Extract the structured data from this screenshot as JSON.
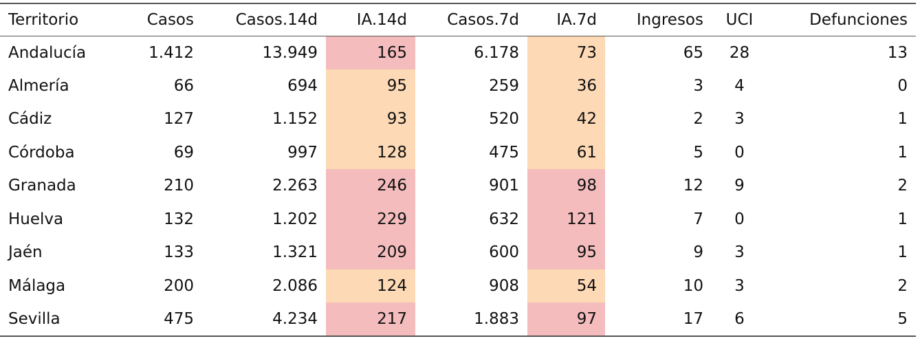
{
  "colors": {
    "high": "#f4bcbd",
    "medium": "#fdd9b5"
  },
  "table": {
    "headers": [
      "Territorio",
      "Casos",
      "Casos.14d",
      "IA.14d",
      "Casos.7d",
      "IA.7d",
      "Ingresos",
      "UCI",
      "Defunciones"
    ],
    "rows": [
      {
        "cells": [
          "Andalucía",
          "1.412",
          "13.949",
          "165",
          "6.178",
          "73",
          "65",
          "28",
          "13"
        ],
        "ia14_level": "high",
        "ia7_level": "medium"
      },
      {
        "cells": [
          "Almería",
          "66",
          "694",
          "95",
          "259",
          "36",
          "3",
          "4",
          "0"
        ],
        "ia14_level": "medium",
        "ia7_level": "medium"
      },
      {
        "cells": [
          "Cádiz",
          "127",
          "1.152",
          "93",
          "520",
          "42",
          "2",
          "3",
          "1"
        ],
        "ia14_level": "medium",
        "ia7_level": "medium"
      },
      {
        "cells": [
          "Córdoba",
          "69",
          "997",
          "128",
          "475",
          "61",
          "5",
          "0",
          "1"
        ],
        "ia14_level": "medium",
        "ia7_level": "medium"
      },
      {
        "cells": [
          "Granada",
          "210",
          "2.263",
          "246",
          "901",
          "98",
          "12",
          "9",
          "2"
        ],
        "ia14_level": "high",
        "ia7_level": "high"
      },
      {
        "cells": [
          "Huelva",
          "132",
          "1.202",
          "229",
          "632",
          "121",
          "7",
          "0",
          "1"
        ],
        "ia14_level": "high",
        "ia7_level": "high"
      },
      {
        "cells": [
          "Jaén",
          "133",
          "1.321",
          "209",
          "600",
          "95",
          "9",
          "3",
          "1"
        ],
        "ia14_level": "high",
        "ia7_level": "high"
      },
      {
        "cells": [
          "Málaga",
          "200",
          "2.086",
          "124",
          "908",
          "54",
          "10",
          "3",
          "2"
        ],
        "ia14_level": "medium",
        "ia7_level": "medium"
      },
      {
        "cells": [
          "Sevilla",
          "475",
          "4.234",
          "217",
          "1.883",
          "97",
          "17",
          "6",
          "5"
        ],
        "ia14_level": "high",
        "ia7_level": "high"
      }
    ]
  }
}
